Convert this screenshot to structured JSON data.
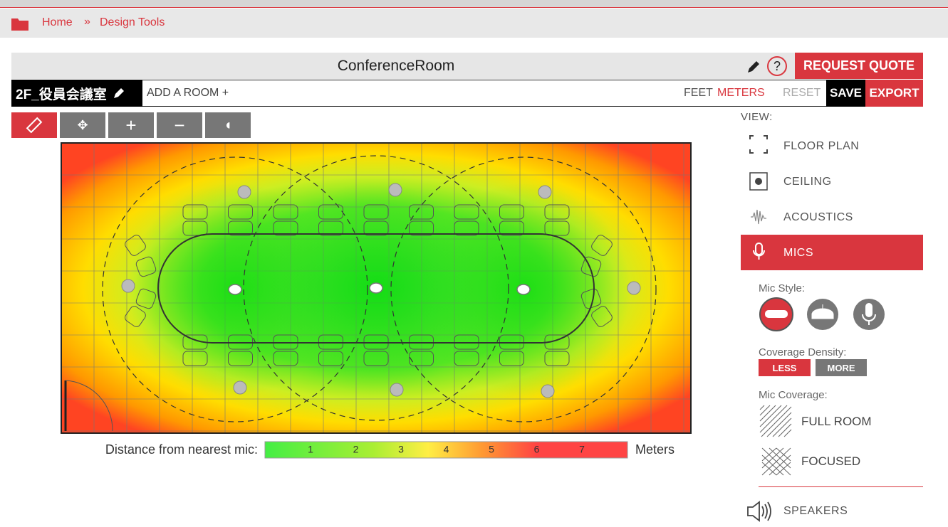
{
  "breadcrumb": {
    "items": [
      "Home",
      "Design Tools"
    ],
    "separator": "»"
  },
  "header": {
    "title": "ConferenceRoom",
    "help": "?",
    "request_quote": "REQUEST QUOTE"
  },
  "room_bar": {
    "room": "2F_役員会議室",
    "add_room": "ADD A ROOM +",
    "units": [
      "FEET",
      "METERS"
    ],
    "reset": "RESET",
    "save": "SAVE",
    "export": "EXPORT"
  },
  "legend": {
    "label": "Distance from nearest mic:",
    "ticks": [
      1,
      2,
      3,
      4,
      5,
      6,
      7
    ],
    "unit": "Meters"
  },
  "sidebar": {
    "view_label": "VIEW:",
    "views": [
      "FLOOR PLAN",
      "CEILING",
      "ACOUSTICS",
      "MICS"
    ],
    "mic_style_label": "Mic Style:",
    "coverage_density_label": "Coverage Density:",
    "density": [
      "LESS",
      "MORE"
    ],
    "mic_coverage_label": "Mic Coverage:",
    "coverage": [
      "FULL ROOM",
      "FOCUSED"
    ],
    "speakers": "SPEAKERS"
  }
}
